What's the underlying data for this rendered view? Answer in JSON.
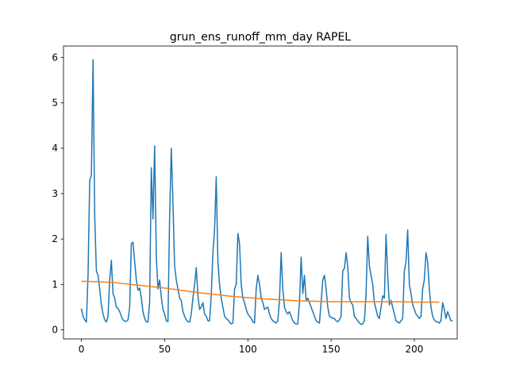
{
  "chart_data": {
    "type": "line",
    "title": "grun_ens_runoff_mm_day RAPEL",
    "xlabel": "",
    "ylabel": "",
    "xlim": [
      -10.75,
      225.75
    ],
    "ylim": [
      -0.2,
      6.25
    ],
    "xticks": [
      0,
      50,
      100,
      150,
      200
    ],
    "yticks": [
      0,
      1,
      2,
      3,
      4,
      5,
      6
    ],
    "grid": false,
    "legend": "none",
    "series": [
      {
        "color": "#1f77b4",
        "x_start": 0,
        "x_step": 1,
        "values": [
          0.47,
          0.3,
          0.22,
          0.17,
          1.2,
          3.3,
          3.4,
          5.95,
          2.5,
          1.3,
          1.2,
          0.9,
          0.55,
          0.35,
          0.22,
          0.17,
          0.3,
          1.1,
          1.53,
          0.8,
          0.7,
          0.5,
          0.47,
          0.4,
          0.3,
          0.22,
          0.19,
          0.19,
          0.22,
          0.5,
          1.9,
          1.93,
          1.5,
          1.1,
          0.87,
          0.92,
          0.7,
          0.4,
          0.25,
          0.18,
          0.17,
          0.6,
          3.57,
          2.44,
          4.05,
          1.6,
          0.9,
          1.1,
          0.72,
          0.45,
          0.35,
          0.2,
          0.18,
          2.5,
          4.0,
          2.8,
          1.4,
          1.1,
          0.9,
          0.7,
          0.65,
          0.4,
          0.3,
          0.22,
          0.18,
          0.17,
          0.35,
          0.7,
          1.0,
          1.37,
          0.75,
          0.45,
          0.5,
          0.6,
          0.35,
          0.3,
          0.2,
          0.2,
          0.75,
          1.7,
          2.2,
          3.37,
          1.5,
          1.0,
          0.7,
          0.5,
          0.3,
          0.25,
          0.22,
          0.17,
          0.13,
          0.15,
          0.9,
          1.0,
          2.12,
          1.9,
          1.0,
          0.7,
          0.6,
          0.45,
          0.35,
          0.3,
          0.25,
          0.18,
          0.15,
          0.9,
          1.2,
          1.0,
          0.7,
          0.6,
          0.45,
          0.48,
          0.5,
          0.35,
          0.25,
          0.2,
          0.17,
          0.15,
          0.2,
          0.65,
          1.7,
          0.9,
          0.5,
          0.4,
          0.35,
          0.4,
          0.3,
          0.2,
          0.15,
          0.13,
          0.13,
          0.6,
          1.6,
          0.8,
          1.2,
          0.65,
          0.7,
          0.6,
          0.5,
          0.4,
          0.3,
          0.2,
          0.17,
          0.15,
          0.6,
          1.1,
          1.2,
          0.9,
          0.5,
          0.3,
          0.28,
          0.25,
          0.25,
          0.2,
          0.18,
          0.22,
          0.3,
          1.3,
          1.35,
          1.7,
          1.4,
          0.7,
          0.6,
          0.55,
          0.3,
          0.25,
          0.2,
          0.15,
          0.12,
          0.13,
          0.2,
          0.8,
          2.06,
          1.4,
          1.2,
          1.0,
          0.6,
          0.45,
          0.3,
          0.25,
          0.5,
          0.75,
          0.7,
          2.1,
          1.2,
          0.55,
          0.65,
          0.5,
          0.35,
          0.2,
          0.17,
          0.15,
          0.2,
          0.25,
          1.3,
          1.5,
          2.2,
          1.0,
          0.8,
          0.55,
          0.45,
          0.35,
          0.3,
          0.25,
          0.3,
          0.9,
          1.1,
          1.7,
          1.5,
          0.9,
          0.5,
          0.3,
          0.22,
          0.18,
          0.17,
          0.15,
          0.2,
          0.6,
          0.45,
          0.25,
          0.4,
          0.3,
          0.2,
          0.2
        ]
      },
      {
        "color": "#ff7f0e",
        "points": [
          [
            0,
            1.07
          ],
          [
            10,
            1.06
          ],
          [
            20,
            1.04
          ],
          [
            30,
            1.0
          ],
          [
            40,
            0.96
          ],
          [
            50,
            0.92
          ],
          [
            60,
            0.87
          ],
          [
            70,
            0.82
          ],
          [
            80,
            0.78
          ],
          [
            90,
            0.74
          ],
          [
            100,
            0.71
          ],
          [
            110,
            0.68
          ],
          [
            120,
            0.66
          ],
          [
            130,
            0.64
          ],
          [
            140,
            0.63
          ],
          [
            150,
            0.62
          ],
          [
            160,
            0.62
          ],
          [
            170,
            0.62
          ],
          [
            180,
            0.62
          ],
          [
            190,
            0.62
          ],
          [
            200,
            0.61
          ],
          [
            210,
            0.61
          ],
          [
            215,
            0.61
          ]
        ]
      }
    ]
  }
}
